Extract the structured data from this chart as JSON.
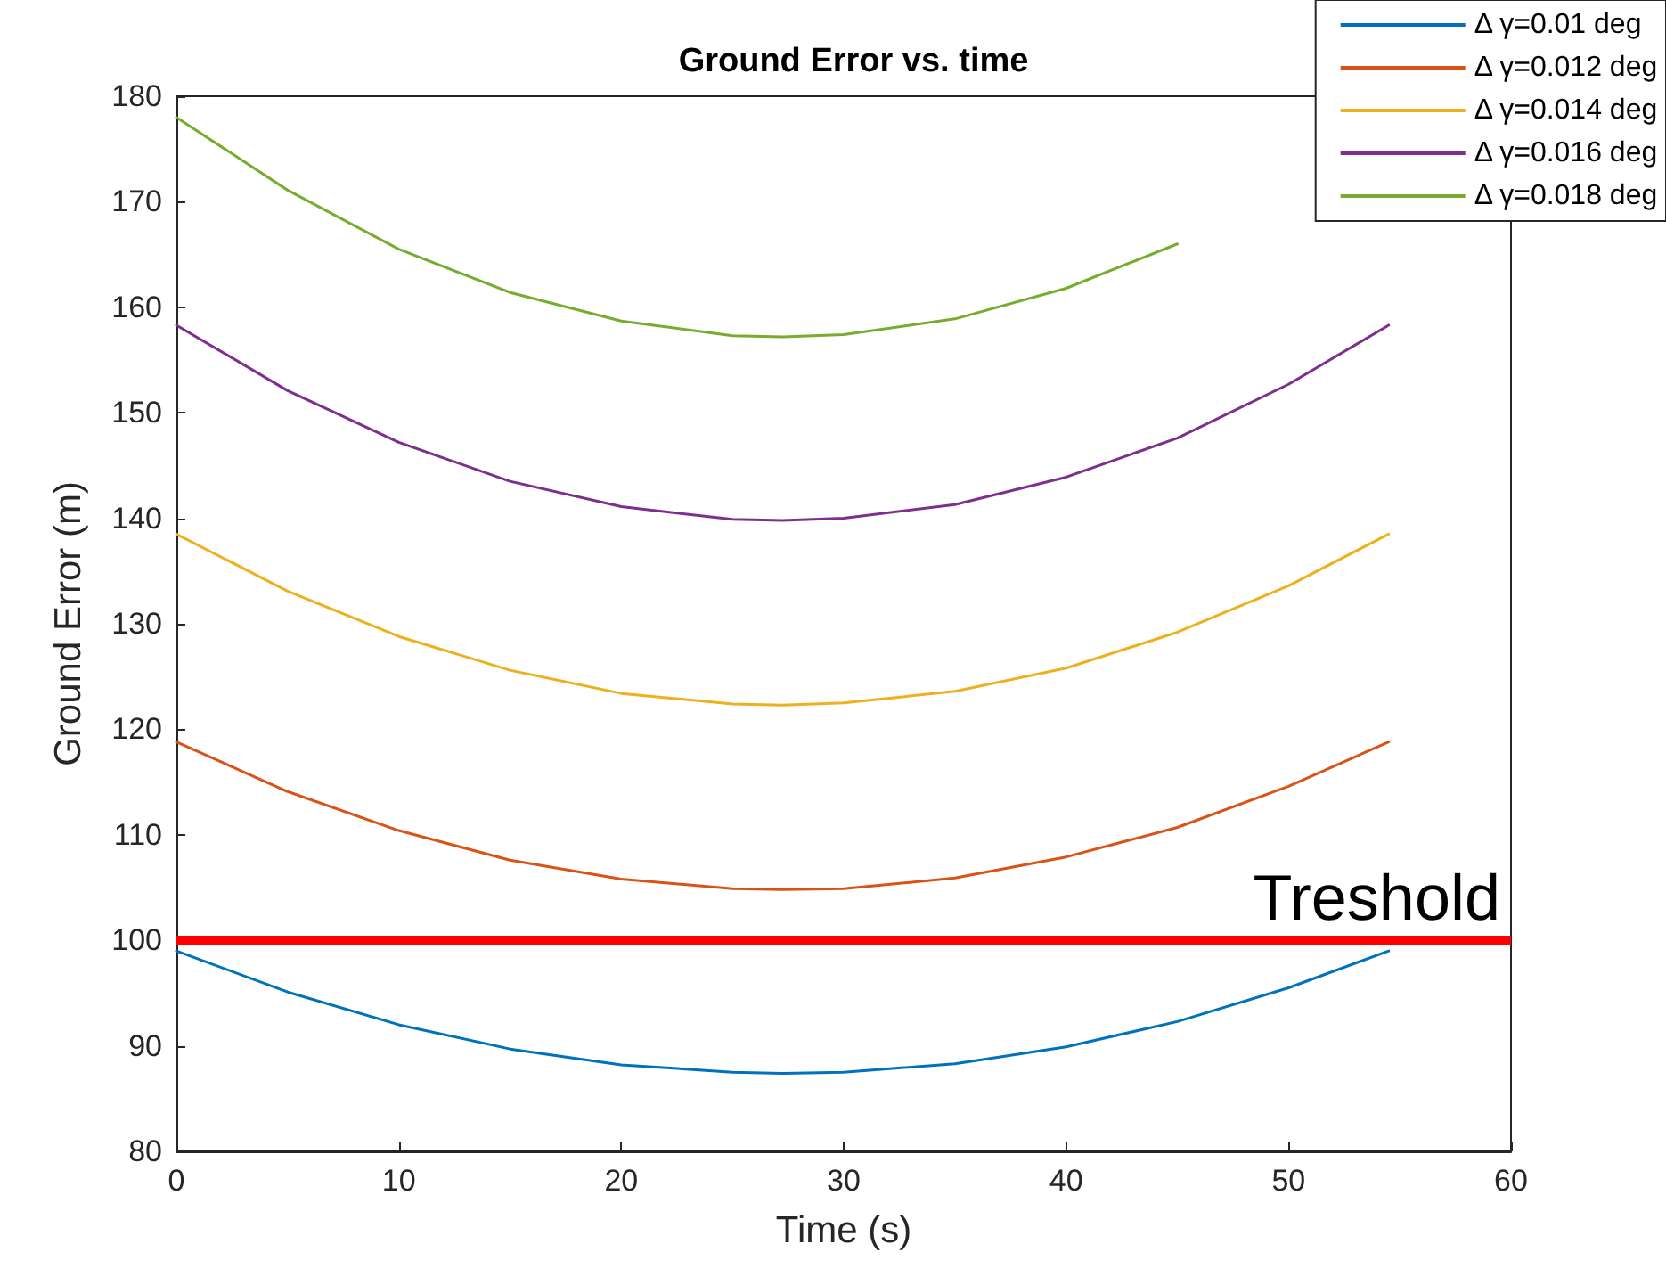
{
  "chart_data": {
    "type": "line",
    "title": "Ground Error vs. time",
    "xlabel": "Time (s)",
    "ylabel": "Ground Error (m)",
    "x": [
      0,
      5,
      10,
      15,
      20,
      25,
      27.25,
      30,
      35,
      40,
      45,
      50,
      54.5
    ],
    "series": [
      {
        "name": "Δ γ=0.01 deg",
        "color": "#0072bd",
        "values": [
          99,
          95.1,
          92.0,
          89.7,
          88.2,
          87.5,
          87.4,
          87.5,
          88.3,
          89.9,
          92.3,
          95.5,
          99
        ]
      },
      {
        "name": "Δ γ=0.012 deg",
        "color": "#d95319",
        "values": [
          118.8,
          114.1,
          110.4,
          107.6,
          105.8,
          104.9,
          104.8,
          104.9,
          105.9,
          107.9,
          110.7,
          114.6,
          118.8
        ]
      },
      {
        "name": "Δ γ=0.014 deg",
        "color": "#edb120",
        "values": [
          138.5,
          133.1,
          128.8,
          125.6,
          123.4,
          122.4,
          122.3,
          122.5,
          123.6,
          125.8,
          129.2,
          133.6,
          138.5
        ]
      },
      {
        "name": "Δ γ=0.016 deg",
        "color": "#7e2f8e",
        "values": [
          158.3,
          152.1,
          147.2,
          143.5,
          141.1,
          139.9,
          139.8,
          140.0,
          141.3,
          143.9,
          147.6,
          152.7,
          158.3
        ]
      },
      {
        "name": "Δ γ=0.018 deg",
        "color": "#77ac30",
        "values": [
          178,
          171.1,
          165.5,
          161.4,
          158.7,
          157.3,
          157.2,
          157.4,
          158.9,
          161.8,
          166.0,
          null,
          null
        ]
      }
    ],
    "xlim": [
      0,
      60
    ],
    "xticks": [
      0,
      10,
      20,
      30,
      40,
      50,
      60
    ],
    "ylim": [
      80,
      180
    ],
    "yticks": [
      80,
      90,
      100,
      110,
      120,
      130,
      140,
      150,
      160,
      170,
      180
    ],
    "ref_lines": [
      {
        "axis": "y",
        "value": 100,
        "label": "Treshold",
        "color": "#ff0000"
      }
    ],
    "grid": false,
    "legend": "top right",
    "marker": "none",
    "line_style": "solid"
  }
}
